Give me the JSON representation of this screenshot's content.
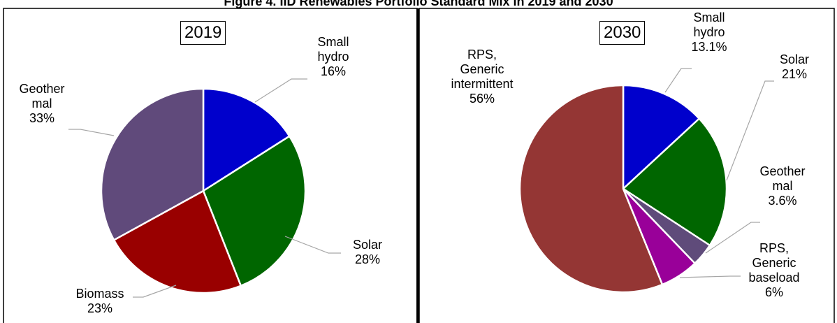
{
  "chart_data": [
    {
      "type": "pie",
      "title": "Figure 4. IID Renewables Portfolio Standard Mix in 2019 and 2030",
      "subtitle": "2019",
      "categories": [
        "Small hydro",
        "Solar",
        "Biomass",
        "Geother mal"
      ],
      "values": [
        16,
        28,
        23,
        33
      ],
      "value_labels": [
        "16%",
        "28%",
        "23%",
        "33%"
      ],
      "colors": [
        "#0000cc",
        "#006600",
        "#990000",
        "#604a7b"
      ]
    },
    {
      "type": "pie",
      "subtitle": "2030",
      "categories": [
        "Small hydro",
        "Solar",
        "Geother mal",
        "RPS, Generic baseload",
        "RPS, Generic intermittent"
      ],
      "values": [
        13.1,
        21,
        3.6,
        6,
        56
      ],
      "value_labels": [
        "13.1%",
        "21%",
        "3.6%",
        "6%",
        "56%"
      ],
      "colors": [
        "#0000cc",
        "#006600",
        "#5f4b7a",
        "#990099",
        "#943634"
      ]
    }
  ]
}
